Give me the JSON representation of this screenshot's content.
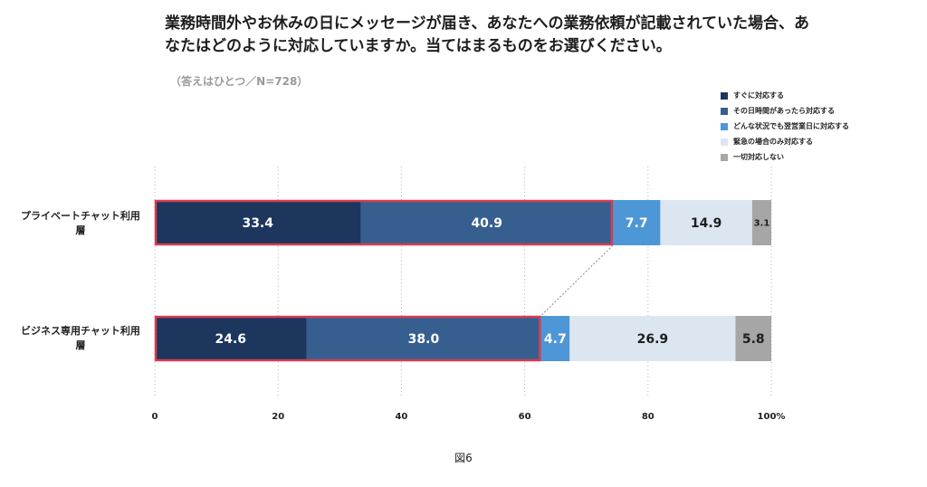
{
  "chart_data": {
    "type": "bar",
    "orientation": "horizontal",
    "stacked": true,
    "title": "業務時間外やお休みの日にメッセージが届き、あなたへの業務依頼が記載されていた場合、あなたはどのように対応していますか。当てはまるものをお選びください。",
    "note": "（答えはひとつ／N=728）",
    "caption": "図6",
    "categories": [
      "プライベートチャット利用層",
      "ビジネス専用チャット利用層"
    ],
    "series": [
      {
        "name": "すぐに対応する",
        "color": "#1d365e",
        "values": [
          33.4,
          24.6
        ]
      },
      {
        "name": "その日時間があったら対応する",
        "color": "#365f90",
        "values": [
          40.9,
          38.0
        ]
      },
      {
        "name": "どんな状況でも翌営業日に対応する",
        "color": "#4e97d6",
        "values": [
          7.7,
          4.7
        ]
      },
      {
        "name": "緊急の場合のみ対応する",
        "color": "#dce6f1",
        "values": [
          14.9,
          26.9
        ]
      },
      {
        "name": "一切対応しない",
        "color": "#a6a6a6",
        "values": [
          3.1,
          5.8
        ]
      }
    ],
    "xlim": [
      0,
      100
    ],
    "x_ticks": [
      "0",
      "20",
      "40",
      "60",
      "80",
      "100%"
    ],
    "highlight_series_count": 2,
    "highlight_color": "#d63c4e",
    "grid": "dotted vertical",
    "legend_position": "top-right"
  }
}
